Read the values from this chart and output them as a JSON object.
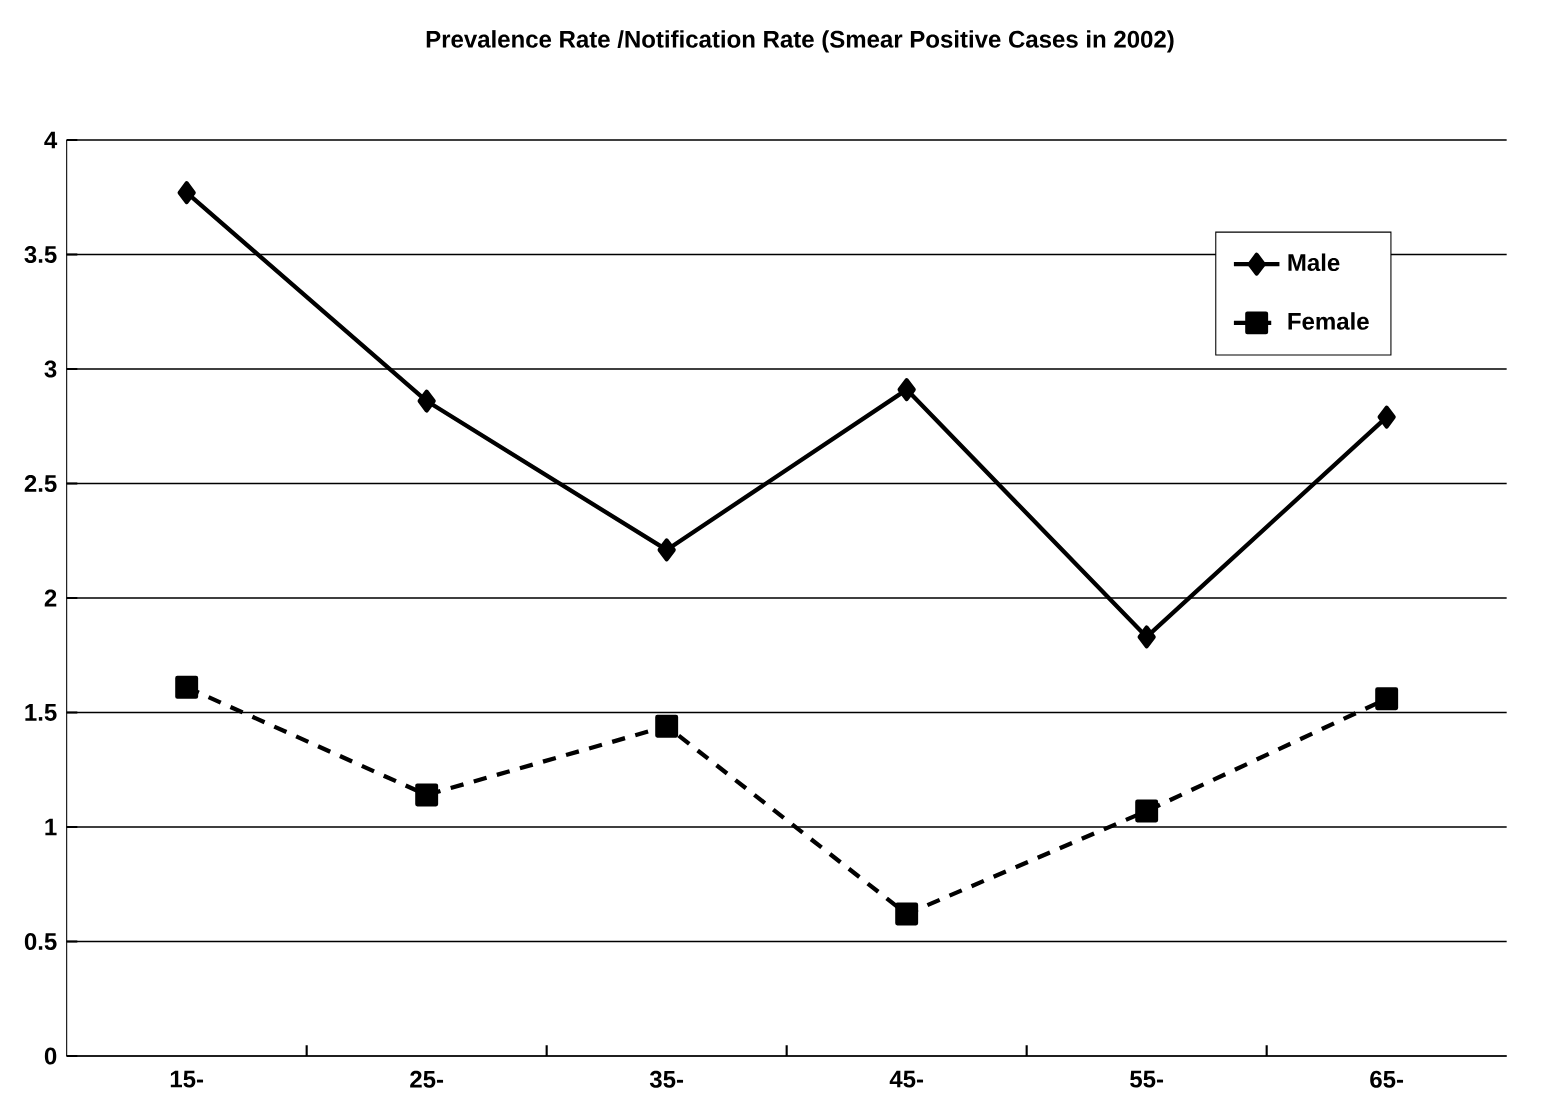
{
  "chart_data": {
    "type": "line",
    "title": "Prevalence Rate /Notification Rate (Smear Positive Cases in 2002)",
    "categories": [
      "15-",
      "25-",
      "35-",
      "45-",
      "55-",
      "65-"
    ],
    "series": [
      {
        "name": "Male",
        "color": "#000000",
        "marker": "diamond",
        "line_style": "solid",
        "values": [
          3.77,
          2.86,
          2.21,
          2.91,
          1.83,
          2.79
        ]
      },
      {
        "name": "Female",
        "color": "#000000",
        "marker": "square",
        "line_style": "dashed",
        "values": [
          1.61,
          1.14,
          1.44,
          0.62,
          1.07,
          1.56
        ]
      }
    ],
    "ylim": [
      0,
      4
    ],
    "yticks": [
      0,
      0.5,
      1,
      1.5,
      2,
      2.5,
      3,
      3.5,
      4
    ],
    "grid": "y",
    "legend": "top right"
  }
}
